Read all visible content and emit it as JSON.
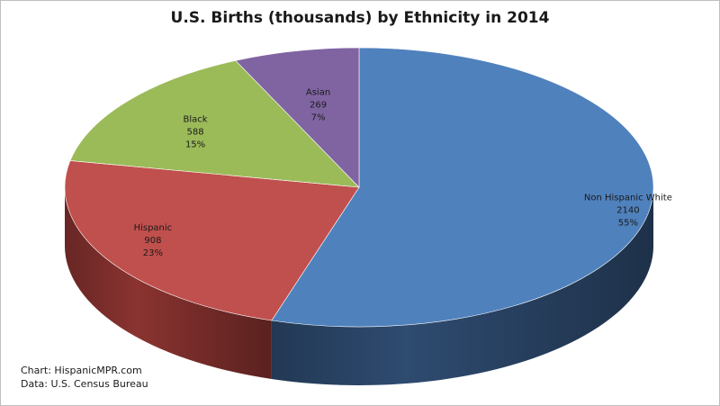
{
  "chart_data": {
    "type": "pie",
    "title": "U.S. Births (thousands) by Ethnicity in 2014",
    "slices": [
      {
        "label": "Non Hispanic White",
        "value": 2140,
        "percent": "55%",
        "color": "#4f81bd",
        "side": "#2e4b70"
      },
      {
        "label": "Hispanic",
        "value": 908,
        "percent": "23%",
        "color": "#c0504d",
        "side": "#8a3330"
      },
      {
        "label": "Black",
        "value": 588,
        "percent": "15%",
        "color": "#9bbb59",
        "side": "#6d873c"
      },
      {
        "label": "Asian",
        "value": 269,
        "percent": "7%",
        "color": "#8064a2",
        "side": "#5a4574"
      }
    ],
    "legend": "none",
    "style": "3d-pie"
  },
  "credits": {
    "line1": "Chart: HispanicMPR.com",
    "line2": "Data: U.S. Census Bureau"
  }
}
